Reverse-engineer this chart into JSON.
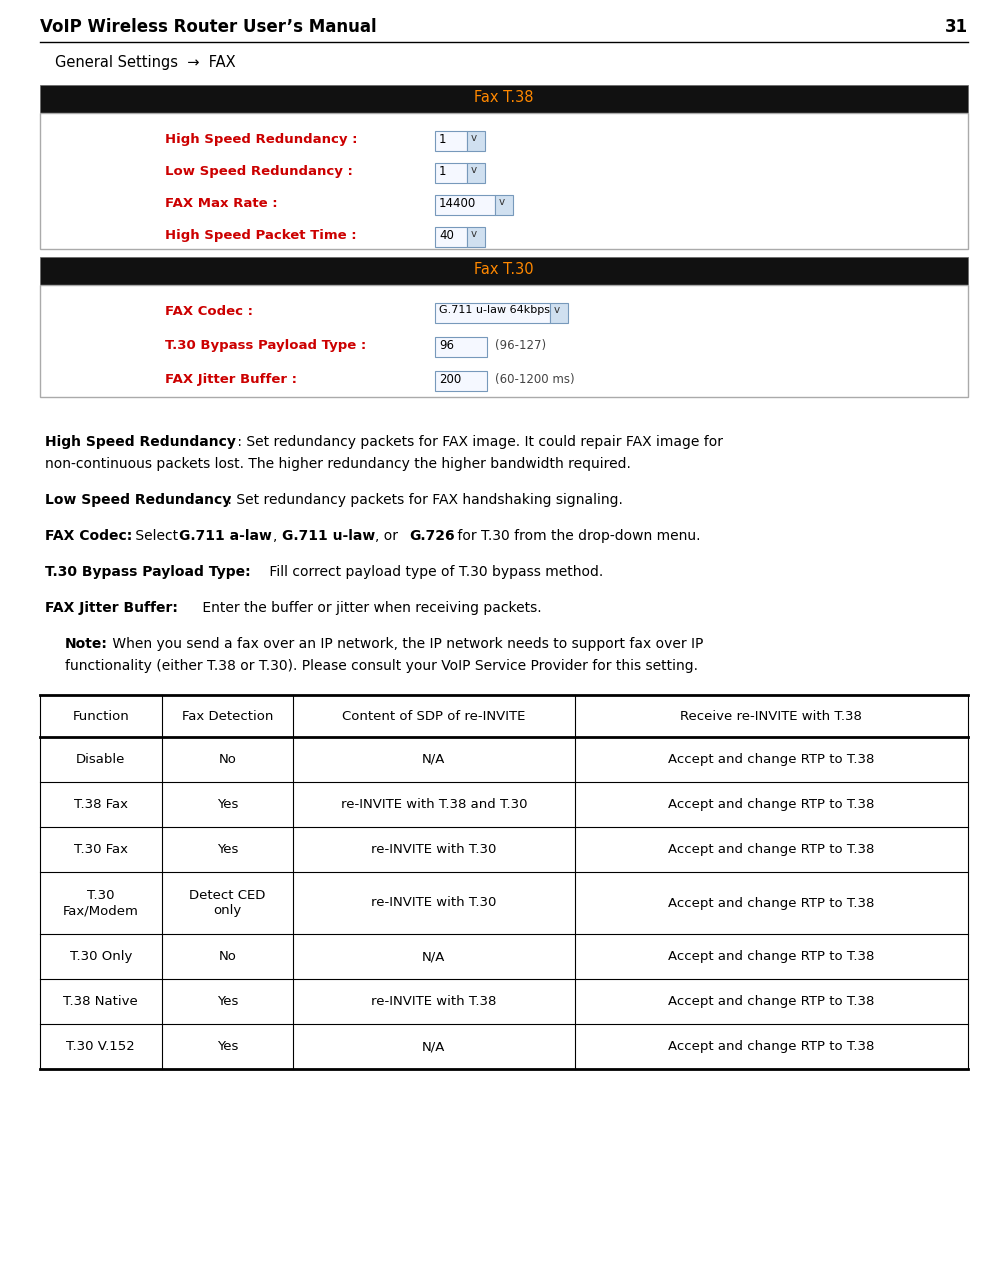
{
  "page_width": 10.08,
  "page_height": 12.71,
  "dpi": 100,
  "bg_color": "#ffffff",
  "header_title": "VoIP Wireless Router User’s Manual",
  "header_page": "31",
  "breadcrumb": "General Settings  →  FAX",
  "fax_t38_header": "Fax T.38",
  "fax_t38_fields": [
    {
      "label": "High Speed Redundancy :",
      "value": "1",
      "wide": false
    },
    {
      "label": "Low Speed Redundancy :",
      "value": "1",
      "wide": false
    },
    {
      "label": "FAX Max Rate :",
      "value": "14400",
      "wide": true
    },
    {
      "label": "High Speed Packet Time :",
      "value": "40",
      "wide": false
    }
  ],
  "fax_t30_header": "Fax T.30",
  "fax_t30_fields": [
    {
      "label": "FAX Codec :",
      "value": "G.711 u-law 64kbps",
      "dropdown": true,
      "extra": ""
    },
    {
      "label": "T.30 Bypass Payload Type :",
      "value": "96",
      "dropdown": false,
      "extra": "(96-127)"
    },
    {
      "label": "FAX Jitter Buffer :",
      "value": "200",
      "dropdown": false,
      "extra": "(60-1200 ms)"
    }
  ],
  "label_color": "#cc0000",
  "note_bold": "Note:",
  "table_headers": [
    "Function",
    "Fax Detection",
    "Content of SDP of re-INVITE",
    "Receive re-INVITE with T.38"
  ],
  "table_rows": [
    [
      "Disable",
      "No",
      "N/A",
      "Accept and change RTP to T.38"
    ],
    [
      "T.38 Fax",
      "Yes",
      "re-INVITE with T.38 and T.30",
      "Accept and change RTP to T.38"
    ],
    [
      "T.30 Fax",
      "Yes",
      "re-INVITE with T.30",
      "Accept and change RTP to T.38"
    ],
    [
      "T.30\nFax/Modem",
      "Detect CED\nonly",
      "re-INVITE with T.30",
      "Accept and change RTP to T.38"
    ],
    [
      "T.30 Only",
      "No",
      "N/A",
      "Accept and change RTP to T.38"
    ],
    [
      "T.38 Native",
      "Yes",
      "re-INVITE with T.38",
      "Accept and change RTP to T.38"
    ],
    [
      "T.30 V.152",
      "Yes",
      "N/A",
      "Accept and change RTP to T.38"
    ]
  ],
  "col_props": [
    0.131,
    0.142,
    0.303,
    0.424
  ]
}
